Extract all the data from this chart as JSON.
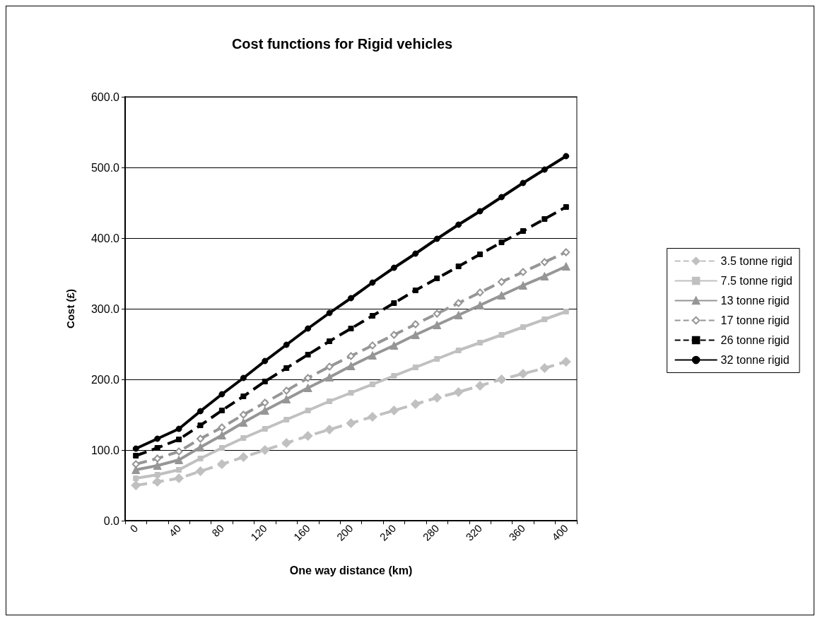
{
  "chart_data": {
    "type": "line",
    "title": "Cost functions for Rigid vehicles",
    "xlabel": "One way distance (km)",
    "ylabel": "Cost (£)",
    "categories": [
      "0",
      null,
      "40",
      null,
      "80",
      null,
      "120",
      null,
      "160",
      null,
      "200",
      null,
      "240",
      null,
      "280",
      null,
      "320",
      null,
      "360",
      null,
      "400"
    ],
    "series": [
      {
        "name": "3.5 tonne rigid",
        "color": "#c0c0c0",
        "marker": "diamond",
        "line_style": "dashed",
        "values": [
          50,
          55,
          60,
          70,
          80,
          90,
          100,
          110,
          120,
          129,
          138,
          147,
          156,
          165,
          174,
          182,
          191,
          200,
          208,
          216,
          225
        ]
      },
      {
        "name": "7.5 tonne rigid",
        "color": "#c0c0c0",
        "marker": "square",
        "line_style": "solid",
        "values": [
          60,
          65,
          72,
          88,
          103,
          117,
          130,
          143,
          156,
          169,
          181,
          193,
          205,
          217,
          229,
          241,
          252,
          263,
          274,
          285,
          296
        ]
      },
      {
        "name": "13 tonne rigid",
        "color": "#969696",
        "marker": "triangle",
        "line_style": "solid",
        "values": [
          72,
          78,
          86,
          104,
          121,
          139,
          156,
          172,
          188,
          203,
          219,
          234,
          248,
          263,
          277,
          291,
          305,
          319,
          333,
          346,
          360
        ]
      },
      {
        "name": "17 tonne rigid",
        "color": "#969696",
        "marker": "diamond",
        "line_style": "dashed",
        "values": [
          80,
          88,
          98,
          116,
          132,
          150,
          167,
          184,
          202,
          218,
          233,
          248,
          263,
          278,
          293,
          308,
          323,
          338,
          352,
          366,
          380
        ]
      },
      {
        "name": "26 tonne rigid",
        "color": "#000000",
        "marker": "square",
        "line_style": "dashed",
        "values": [
          92,
          103,
          115,
          135,
          156,
          176,
          197,
          216,
          235,
          254,
          272,
          290,
          308,
          326,
          343,
          360,
          377,
          394,
          410,
          427,
          444
        ]
      },
      {
        "name": "32 tonne rigid",
        "color": "#000000",
        "marker": "circle",
        "line_style": "solid",
        "values": [
          102,
          116,
          130,
          155,
          179,
          202,
          226,
          249,
          272,
          294,
          315,
          337,
          358,
          378,
          399,
          419,
          438,
          458,
          478,
          497,
          516
        ]
      }
    ],
    "ylim": [
      0,
      600
    ],
    "yticks": [
      {
        "value": 0,
        "label": "0.0"
      },
      {
        "value": 100,
        "label": "100.0"
      },
      {
        "value": 200,
        "label": "200.0"
      },
      {
        "value": 300,
        "label": "300.0"
      },
      {
        "value": 400,
        "label": "400.0"
      },
      {
        "value": 500,
        "label": "500.0"
      },
      {
        "value": 600,
        "label": "600.0"
      }
    ],
    "grid": "y",
    "legend": "right"
  }
}
